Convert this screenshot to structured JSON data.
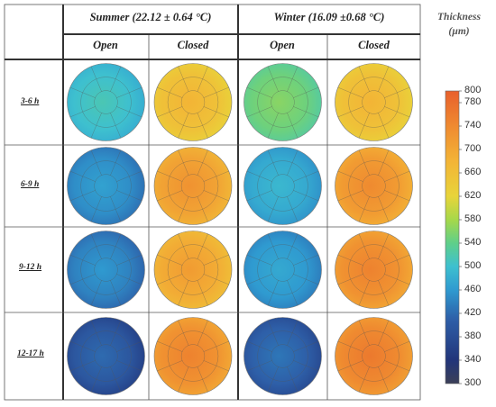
{
  "columns": {
    "groups": [
      {
        "label": "Summer (22.12 ± 0.64 °C)"
      },
      {
        "label": "Winter (16.09 ±0.68 °C)"
      }
    ],
    "subheaders": [
      "Open",
      "Closed",
      "Open",
      "Closed"
    ]
  },
  "rows": [
    {
      "label": "3-6 h"
    },
    {
      "label": "6-9 h"
    },
    {
      "label": "9-12 h"
    },
    {
      "label": "12-17 h"
    }
  ],
  "maps": [
    [
      {
        "dominant_level": 500
      },
      {
        "dominant_level": 680
      },
      {
        "dominant_level": 560
      },
      {
        "dominant_level": 680
      }
    ],
    [
      {
        "dominant_level": 440
      },
      {
        "dominant_level": 720
      },
      {
        "dominant_level": 470
      },
      {
        "dominant_level": 730
      }
    ],
    [
      {
        "dominant_level": 430
      },
      {
        "dominant_level": 710
      },
      {
        "dominant_level": 450
      },
      {
        "dominant_level": 740
      }
    ],
    [
      {
        "dominant_level": 390
      },
      {
        "dominant_level": 740
      },
      {
        "dominant_level": 400
      },
      {
        "dominant_level": 750
      }
    ]
  ],
  "colorbar": {
    "title_line1": "Thickness",
    "title_line2": "(µm)",
    "ticks": [
      "800",
      "780",
      "740",
      "700",
      "660",
      "620",
      "580",
      "540",
      "500",
      "460",
      "420",
      "380",
      "340",
      "300"
    ],
    "min": 300,
    "max": 800,
    "stops": [
      "#3b3f57",
      "#22357a",
      "#2e5fa8",
      "#2f9ad0",
      "#3ec0cf",
      "#5fcf8a",
      "#a6d84a",
      "#e8d43a",
      "#f3b436",
      "#ef8a30",
      "#e8602c"
    ]
  }
}
